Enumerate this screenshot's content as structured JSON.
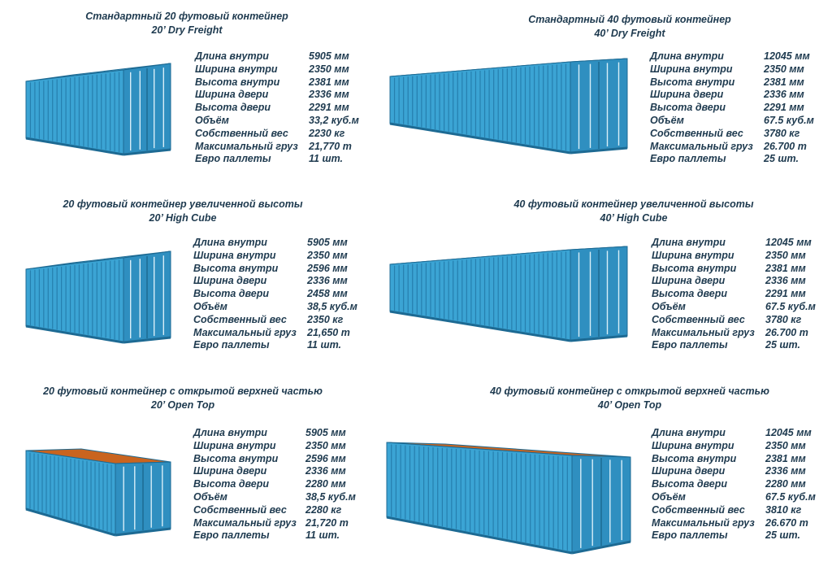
{
  "containers": [
    {
      "title_ru": "Стандартный 20 футовый контейнер",
      "title_en": "20’ Dry Freight",
      "specs": [
        {
          "label": "Длина внутри",
          "value": "5905 мм"
        },
        {
          "label": "Ширина внутри",
          "value": "2350 мм"
        },
        {
          "label": "Высота внутри",
          "value": "2381 мм"
        },
        {
          "label": "Ширина двери",
          "value": "2336 мм"
        },
        {
          "label": "Высота двери",
          "value": "2291 мм"
        },
        {
          "label": "Объём",
          "value": "33,2 куб.м"
        },
        {
          "label": "Собственный вес",
          "value": "2230 кг"
        },
        {
          "label": "Максимальный груз",
          "value": "21,770 т"
        },
        {
          "label": "Евро паллеты",
          "value": "11 шт."
        }
      ]
    },
    {
      "title_ru": "Стандартный 40 футовый контейнер",
      "title_en": "40’ Dry Freight",
      "specs": [
        {
          "label": "Длина внутри",
          "value": "12045 мм"
        },
        {
          "label": "Ширина внутри",
          "value": "2350 мм"
        },
        {
          "label": "Высота внутри",
          "value": "2381 мм"
        },
        {
          "label": "Ширина двери",
          "value": "2336 мм"
        },
        {
          "label": "Высота двери",
          "value": "2291 мм"
        },
        {
          "label": "Объём",
          "value": "67.5 куб.м"
        },
        {
          "label": "Собственный вес",
          "value": "3780 кг"
        },
        {
          "label": "Максимальный груз",
          "value": "26.700 т"
        },
        {
          "label": "Евро паллеты",
          "value": "25 шт."
        }
      ]
    },
    {
      "title_ru": "20 футовый контейнер увеличенной высоты",
      "title_en": "20’ High Cube",
      "specs": [
        {
          "label": "Длина внутри",
          "value": "5905 мм"
        },
        {
          "label": "Ширина внутри",
          "value": "2350 мм"
        },
        {
          "label": "Высота внутри",
          "value": "2596 мм"
        },
        {
          "label": "Ширина двери",
          "value": "2336 мм"
        },
        {
          "label": "Высота двери",
          "value": "2458 мм"
        },
        {
          "label": "Объём",
          "value": "38,5 куб.м"
        },
        {
          "label": "Собственный вес",
          "value": "2350 кг"
        },
        {
          "label": "Максимальный груз",
          "value": "21,650 т"
        },
        {
          "label": "Евро паллеты",
          "value": "11 шт."
        }
      ]
    },
    {
      "title_ru": "40 футовый контейнер увеличенной высоты",
      "title_en": "40’ High Cube",
      "specs": [
        {
          "label": "Длина внутри",
          "value": "12045 мм"
        },
        {
          "label": "Ширина внутри",
          "value": "2350 мм"
        },
        {
          "label": "Высота внутри",
          "value": "2381 мм"
        },
        {
          "label": "Ширина двери",
          "value": "2336 мм"
        },
        {
          "label": "Высота двери",
          "value": "2291 мм"
        },
        {
          "label": "Объём",
          "value": "67.5 куб.м"
        },
        {
          "label": "Собственный вес",
          "value": "3780 кг"
        },
        {
          "label": "Максимальный груз",
          "value": "26.700 т"
        },
        {
          "label": "Евро паллеты",
          "value": "25 шт."
        }
      ]
    },
    {
      "title_ru": "20 футовый контейнер с открытой верхней частью",
      "title_en": "20’ Open Top",
      "specs": [
        {
          "label": "Длина внутри",
          "value": "5905 мм"
        },
        {
          "label": "Ширина внутри",
          "value": "2350 мм"
        },
        {
          "label": "Высота внутри",
          "value": "2596 мм"
        },
        {
          "label": "Ширина двери",
          "value": "2336 мм"
        },
        {
          "label": "Высота двери",
          "value": "2280 мм"
        },
        {
          "label": "Объём",
          "value": "38,5 куб.м"
        },
        {
          "label": "Собственный вес",
          "value": "2280 кг"
        },
        {
          "label": "Максимальный груз",
          "value": "21,720 т"
        },
        {
          "label": "Евро паллеты",
          "value": "11 шт."
        }
      ]
    },
    {
      "title_ru": "40 футовый контейнер с открытой верхней частью",
      "title_en": "40’ Open Top",
      "specs": [
        {
          "label": "Длина внутри",
          "value": "12045 мм"
        },
        {
          "label": "Ширина внутри",
          "value": "2350 мм"
        },
        {
          "label": "Высота внутри",
          "value": "2381 мм"
        },
        {
          "label": "Ширина двери",
          "value": "2336 мм"
        },
        {
          "label": "Высота двери",
          "value": "2280 мм"
        },
        {
          "label": "Объём",
          "value": "67.5 куб.м"
        },
        {
          "label": "Собственный вес",
          "value": "3810 кг"
        },
        {
          "label": "Максимальный груз",
          "value": "26.670 т"
        },
        {
          "label": "Евро паллеты",
          "value": "25 шт."
        }
      ]
    }
  ],
  "colors": {
    "text": "#1e3a4f",
    "container_side": "#3ba4d4",
    "container_end": "#2f8fc0",
    "container_rib": "#267fae",
    "container_roof": "#5ab8e0",
    "container_base": "#1d6a93",
    "open_top": "#c9641f"
  }
}
